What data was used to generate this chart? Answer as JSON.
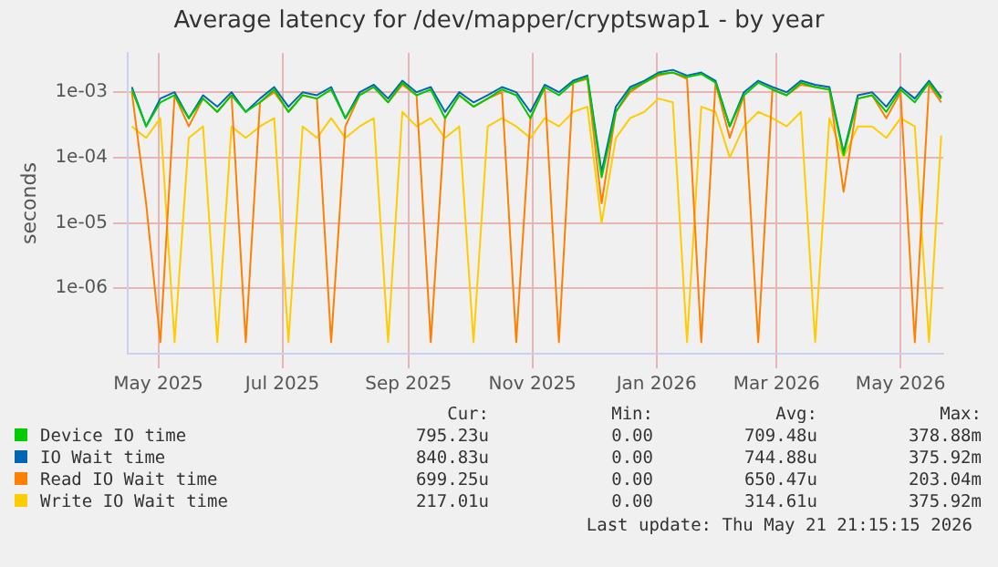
{
  "chart_data": {
    "type": "line",
    "title": "Average latency for /dev/mapper/cryptswap1 - by year",
    "ylabel": "seconds",
    "log": "y",
    "grid": true,
    "legend": "bottom",
    "marker": "none",
    "line_style": "solid",
    "x": [
      "2025-04-18",
      "2025-04-25",
      "2025-05-02",
      "2025-05-09",
      "2025-05-16",
      "2025-05-23",
      "2025-05-30",
      "2025-06-06",
      "2025-06-13",
      "2025-06-20",
      "2025-06-27",
      "2025-07-04",
      "2025-07-11",
      "2025-07-18",
      "2025-07-25",
      "2025-08-01",
      "2025-08-08",
      "2025-08-15",
      "2025-08-22",
      "2025-08-29",
      "2025-09-05",
      "2025-09-12",
      "2025-09-19",
      "2025-09-26",
      "2025-10-03",
      "2025-10-10",
      "2025-10-17",
      "2025-10-24",
      "2025-10-31",
      "2025-11-07",
      "2025-11-14",
      "2025-11-21",
      "2025-11-28",
      "2025-12-05",
      "2025-12-12",
      "2025-12-19",
      "2025-12-26",
      "2026-01-02",
      "2026-01-09",
      "2026-01-16",
      "2026-01-23",
      "2026-01-30",
      "2026-02-06",
      "2026-02-13",
      "2026-02-20",
      "2026-02-27",
      "2026-03-06",
      "2026-03-13",
      "2026-03-20",
      "2026-03-27",
      "2026-04-03",
      "2026-04-10",
      "2026-04-17",
      "2026-04-24",
      "2026-05-01",
      "2026-05-08",
      "2026-05-15",
      "2026-05-21"
    ],
    "xlim": [
      "2025-04-16",
      "2026-05-22"
    ],
    "xticks": [
      {
        "value": "2025-05-01",
        "label": "May 2025"
      },
      {
        "value": "2025-07-01",
        "label": "Jul 2025"
      },
      {
        "value": "2025-09-01",
        "label": "Sep 2025"
      },
      {
        "value": "2025-11-01",
        "label": "Nov 2025"
      },
      {
        "value": "2026-01-01",
        "label": "Jan 2026"
      },
      {
        "value": "2026-03-01",
        "label": "Mar 2026"
      },
      {
        "value": "2026-05-01",
        "label": "May 2026"
      }
    ],
    "ylim": [
      1e-07,
      0.004
    ],
    "yticks": [
      {
        "value": 1e-06,
        "label": "1e-06"
      },
      {
        "value": 1e-05,
        "label": "1e-05"
      },
      {
        "value": 0.0001,
        "label": "1e-04"
      },
      {
        "value": 0.001,
        "label": "1e-03"
      }
    ],
    "series": [
      {
        "name": "Device IO time",
        "color": "#00cc00",
        "values": [
          0.0011,
          0.0003,
          0.0007,
          0.0009,
          0.0004,
          0.0008,
          0.0005,
          0.0009,
          0.0005,
          0.0007,
          0.0011,
          0.0005,
          0.0009,
          0.0008,
          0.0011,
          0.0004,
          0.0009,
          0.0012,
          0.0007,
          0.0014,
          0.0009,
          0.0011,
          0.0004,
          0.0009,
          0.0006,
          0.0008,
          0.0011,
          0.0009,
          0.0004,
          0.0012,
          0.0009,
          0.0014,
          0.0017,
          5e-05,
          0.0005,
          0.0011,
          0.0014,
          0.0019,
          0.002,
          0.0017,
          0.0019,
          0.0014,
          0.0003,
          0.0009,
          0.0014,
          0.0011,
          0.0009,
          0.0014,
          0.0012,
          0.0011,
          0.00011,
          0.0008,
          0.0009,
          0.0005,
          0.0011,
          0.0007,
          0.0014,
          0.000795
        ]
      },
      {
        "name": "IO Wait time",
        "color": "#0066b3",
        "values": [
          0.0012,
          0.0003,
          0.0008,
          0.001,
          0.0004,
          0.0009,
          0.0006,
          0.001,
          0.0005,
          0.0008,
          0.0012,
          0.0006,
          0.001,
          0.0009,
          0.0012,
          0.0004,
          0.001,
          0.0013,
          0.0008,
          0.0015,
          0.001,
          0.0012,
          0.0005,
          0.001,
          0.0007,
          0.0009,
          0.0012,
          0.001,
          0.0005,
          0.0013,
          0.001,
          0.0015,
          0.0018,
          6e-05,
          0.0006,
          0.0012,
          0.0015,
          0.002,
          0.0022,
          0.0018,
          0.002,
          0.0015,
          0.0003,
          0.001,
          0.0015,
          0.0012,
          0.001,
          0.0015,
          0.0013,
          0.0012,
          0.00012,
          0.0009,
          0.001,
          0.0006,
          0.0012,
          0.0008,
          0.0015,
          0.00084
        ]
      },
      {
        "name": "Read IO Wait time",
        "color": "#ff8000",
        "values": [
          0.001,
          2e-05,
          1.5e-07,
          0.0009,
          0.0003,
          0.0008,
          0.0005,
          0.0009,
          1.5e-07,
          0.0007,
          0.001,
          0.0005,
          0.0009,
          0.0008,
          1.5e-07,
          0.0003,
          0.0009,
          0.0012,
          0.0007,
          0.0013,
          0.0009,
          1.5e-07,
          0.0004,
          0.0009,
          0.0006,
          0.0008,
          0.001,
          1.5e-07,
          0.0004,
          0.0012,
          1.5e-07,
          0.0014,
          0.0016,
          2e-05,
          0.0005,
          0.001,
          0.0014,
          0.0018,
          0.002,
          0.0016,
          1.5e-07,
          0.0014,
          0.0002,
          0.0009,
          1.5e-07,
          0.0011,
          0.0009,
          0.0013,
          0.0012,
          0.0011,
          3e-05,
          0.0008,
          0.0009,
          0.0004,
          0.001,
          1.5e-07,
          0.0013,
          0.000699
        ]
      },
      {
        "name": "Write IO Wait time",
        "color": "#ffcc00",
        "values": [
          0.0003,
          0.0002,
          0.0004,
          1.5e-07,
          0.0002,
          0.0003,
          1.5e-07,
          0.0003,
          0.0002,
          0.0003,
          0.0004,
          1.5e-07,
          0.0003,
          0.0002,
          0.0004,
          0.0002,
          0.0003,
          0.0004,
          1.5e-07,
          0.0005,
          0.0003,
          0.0004,
          0.0002,
          0.0003,
          1.5e-07,
          0.0003,
          0.0004,
          0.0003,
          0.0002,
          0.0004,
          0.0003,
          0.0005,
          0.0006,
          1e-05,
          0.0002,
          0.0004,
          0.0005,
          0.0008,
          0.0007,
          1.5e-07,
          0.0006,
          0.0005,
          0.0001,
          0.0003,
          0.0005,
          0.0004,
          0.0003,
          0.0005,
          1.5e-07,
          0.0004,
          0.0001,
          0.0003,
          0.0003,
          0.0002,
          0.0004,
          0.0003,
          1.5e-07,
          0.000217
        ]
      }
    ],
    "annotations": [
      "Cur:",
      "Min:",
      "Avg:",
      "Max:",
      "795.23u",
      "0.00",
      "709.48u",
      "378.88m",
      "840.83u",
      "0.00",
      "744.88u",
      "375.92m",
      "699.25u",
      "0.00",
      "650.47u",
      "203.04m",
      "217.01u",
      "0.00",
      "314.61u",
      "375.92m",
      "Last update: Thu May 21 21:15:15 2026"
    ]
  }
}
